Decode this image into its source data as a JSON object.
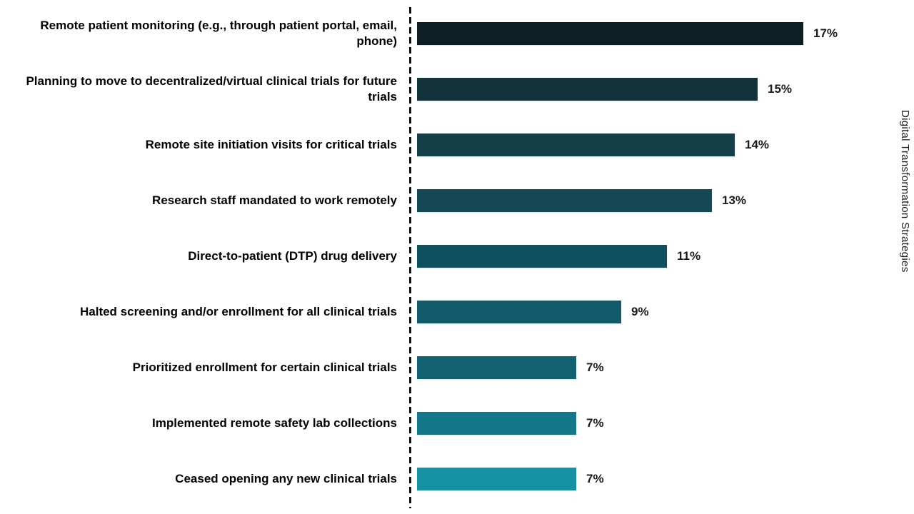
{
  "chart_data": {
    "type": "bar",
    "orientation": "horizontal",
    "title": "",
    "right_axis_label": "Digital Transformation Strategies",
    "categories": [
      "Remote patient monitoring (e.g., through patient portal, email, phone)",
      "Planning to move to decentralized/virtual clinical trials for future trials",
      "Remote site initiation visits for critical trials",
      "Research staff mandated to work remotely",
      "Direct-to-patient (DTP) drug delivery",
      "Halted screening and/or enrollment for all clinical trials",
      "Prioritized enrollment for certain clinical trials",
      "Implemented remote safety lab collections",
      "Ceased opening any new clinical trials"
    ],
    "values": [
      17,
      15,
      14,
      13,
      11,
      9,
      7,
      7,
      7
    ],
    "value_labels": [
      "17%",
      "15%",
      "14%",
      "13%",
      "11%",
      "9%",
      "7%",
      "7%",
      "7%"
    ],
    "bar_colors": [
      "#0D1F24",
      "#12333B",
      "#143F49",
      "#144854",
      "#0E4F5D",
      "#115A69",
      "#116170",
      "#14778A",
      "#1591A3"
    ],
    "xlim": [
      0,
      17
    ],
    "grid": false,
    "legend": false,
    "axis_divider_style": "dashed"
  }
}
